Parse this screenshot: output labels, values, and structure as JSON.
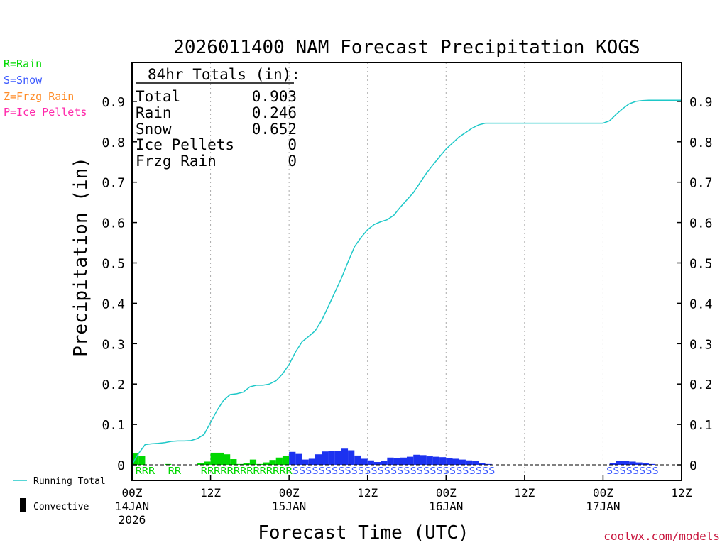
{
  "chart_data": {
    "type": "bar",
    "title": "2026011400 NAM Forecast Precipitation KOGS",
    "xlabel": "Forecast Time (UTC)",
    "ylabel": "Precipitation (in)",
    "ylim": [
      0,
      1
    ],
    "yticks": [
      0,
      0.1,
      0.2,
      0.3,
      0.4,
      0.5,
      0.6,
      0.7,
      0.8,
      0.9
    ],
    "ytick_labels": [
      "0",
      "0.1",
      "0.2",
      "0.3",
      "0.4",
      "0.5",
      "0.6",
      "0.7",
      "0.8",
      "0.9"
    ],
    "xlim": [
      0,
      84
    ],
    "xticks": [
      {
        "hour": 0,
        "label": "00Z",
        "date": "14JAN",
        "year": "2026"
      },
      {
        "hour": 12,
        "label": "12Z",
        "date": "",
        "year": ""
      },
      {
        "hour": 24,
        "label": "00Z",
        "date": "15JAN",
        "year": ""
      },
      {
        "hour": 36,
        "label": "12Z",
        "date": "",
        "year": ""
      },
      {
        "hour": 48,
        "label": "00Z",
        "date": "16JAN",
        "year": ""
      },
      {
        "hour": 60,
        "label": "12Z",
        "date": "",
        "year": ""
      },
      {
        "hour": 72,
        "label": "00Z",
        "date": "17JAN",
        "year": ""
      },
      {
        "hour": 84,
        "label": "12Z",
        "date": "",
        "year": ""
      }
    ],
    "legend_types": [
      {
        "label": "R=Rain",
        "color": "#00d800"
      },
      {
        "label": "S=Snow",
        "color": "#3c5aff"
      },
      {
        "label": "Z=Frzg Rain",
        "color": "#ff8c28"
      },
      {
        "label": "P=Ice Pellets",
        "color": "#ff28aa"
      }
    ],
    "legend_lines": {
      "running_total": "Running Total",
      "convective": "Convective"
    },
    "totals": {
      "header": "84hr Totals (in):",
      "rows": [
        {
          "label": "Total",
          "value": "0.903"
        },
        {
          "label": "Rain",
          "value": "0.246"
        },
        {
          "label": "Snow",
          "value": "0.652"
        },
        {
          "label": "Ice Pellets",
          "value": "0"
        },
        {
          "label": "Frzg Rain",
          "value": "0"
        }
      ]
    },
    "colors": {
      "rain": "#00d800",
      "snow": "#1c32f0",
      "running_total": "#1ec8c8"
    },
    "series": [
      {
        "name": "Rain",
        "type_code": "R",
        "hours": [
          1,
          2,
          6,
          11,
          12,
          13,
          14,
          15,
          16,
          17,
          18,
          19,
          20,
          21,
          22,
          23,
          24
        ],
        "values": [
          0.028,
          0.022,
          0.002,
          0.004,
          0.008,
          0.03,
          0.03,
          0.026,
          0.014,
          0.002,
          0.005,
          0.013,
          0.002,
          0.006,
          0.012,
          0.018,
          0.022
        ]
      },
      {
        "name": "Snow",
        "type_code": "S",
        "hours": [
          25,
          26,
          27,
          28,
          29,
          30,
          31,
          32,
          33,
          34,
          35,
          36,
          37,
          38,
          39,
          40,
          41,
          42,
          43,
          44,
          45,
          46,
          47,
          48,
          49,
          50,
          51,
          52,
          53,
          54,
          55,
          74,
          75,
          76,
          77,
          78,
          79,
          80
        ],
        "values": [
          0.032,
          0.027,
          0.013,
          0.015,
          0.026,
          0.033,
          0.035,
          0.035,
          0.04,
          0.036,
          0.023,
          0.015,
          0.011,
          0.007,
          0.01,
          0.018,
          0.017,
          0.018,
          0.02,
          0.025,
          0.024,
          0.021,
          0.02,
          0.019,
          0.017,
          0.015,
          0.013,
          0.011,
          0.009,
          0.005,
          0.002,
          0.004,
          0.01,
          0.009,
          0.008,
          0.006,
          0.004,
          0.002
        ]
      },
      {
        "name": "Running Total",
        "type": "line",
        "hours": [
          0,
          0.5,
          1,
          2,
          3,
          4,
          5,
          6,
          7,
          8,
          9,
          10,
          11,
          12,
          13,
          14,
          15,
          16,
          17,
          18,
          19,
          20,
          21,
          22,
          23,
          24,
          25,
          26,
          27,
          28,
          29,
          30,
          31,
          32,
          33,
          34,
          35,
          36,
          37,
          38,
          39,
          40,
          41,
          42,
          43,
          44,
          45,
          46,
          47,
          48,
          49,
          50,
          51,
          52,
          53,
          54,
          55,
          56,
          60,
          64,
          68,
          71,
          72,
          73,
          74,
          75,
          76,
          77,
          78,
          79,
          80,
          82,
          84
        ],
        "values": [
          0,
          0.015,
          0.028,
          0.05,
          0.052,
          0.053,
          0.055,
          0.058,
          0.059,
          0.059,
          0.06,
          0.065,
          0.075,
          0.105,
          0.135,
          0.16,
          0.174,
          0.176,
          0.18,
          0.193,
          0.197,
          0.197,
          0.2,
          0.208,
          0.225,
          0.248,
          0.28,
          0.305,
          0.318,
          0.332,
          0.358,
          0.392,
          0.427,
          0.462,
          0.502,
          0.54,
          0.563,
          0.582,
          0.595,
          0.602,
          0.607,
          0.618,
          0.638,
          0.656,
          0.674,
          0.698,
          0.722,
          0.743,
          0.763,
          0.782,
          0.797,
          0.812,
          0.823,
          0.834,
          0.842,
          0.846,
          0.846,
          0.846,
          0.846,
          0.846,
          0.846,
          0.846,
          0.846,
          0.852,
          0.868,
          0.882,
          0.894,
          0.9,
          0.902,
          0.903,
          0.903,
          0.903,
          0.903
        ]
      }
    ],
    "type_codes": [
      {
        "text": "RRR",
        "hours": [
          0.5,
          3.5
        ]
      },
      {
        "text": "RR",
        "hours": [
          5.5,
          7.5
        ]
      },
      {
        "text": "RRRRRRRRRR",
        "hours": [
          10.5,
          20.5
        ]
      },
      {
        "text": "RRRR",
        "hours": [
          20.5,
          24.5
        ]
      },
      {
        "text": "SSSSSSSSSSSSSSSSSSSSSSSSSSSSSSS",
        "hours": [
          24.5,
          55.5
        ]
      },
      {
        "text": "SSSSSSSS",
        "hours": [
          72.5,
          80.5
        ]
      }
    ]
  },
  "credit": "coolwx.com/models"
}
